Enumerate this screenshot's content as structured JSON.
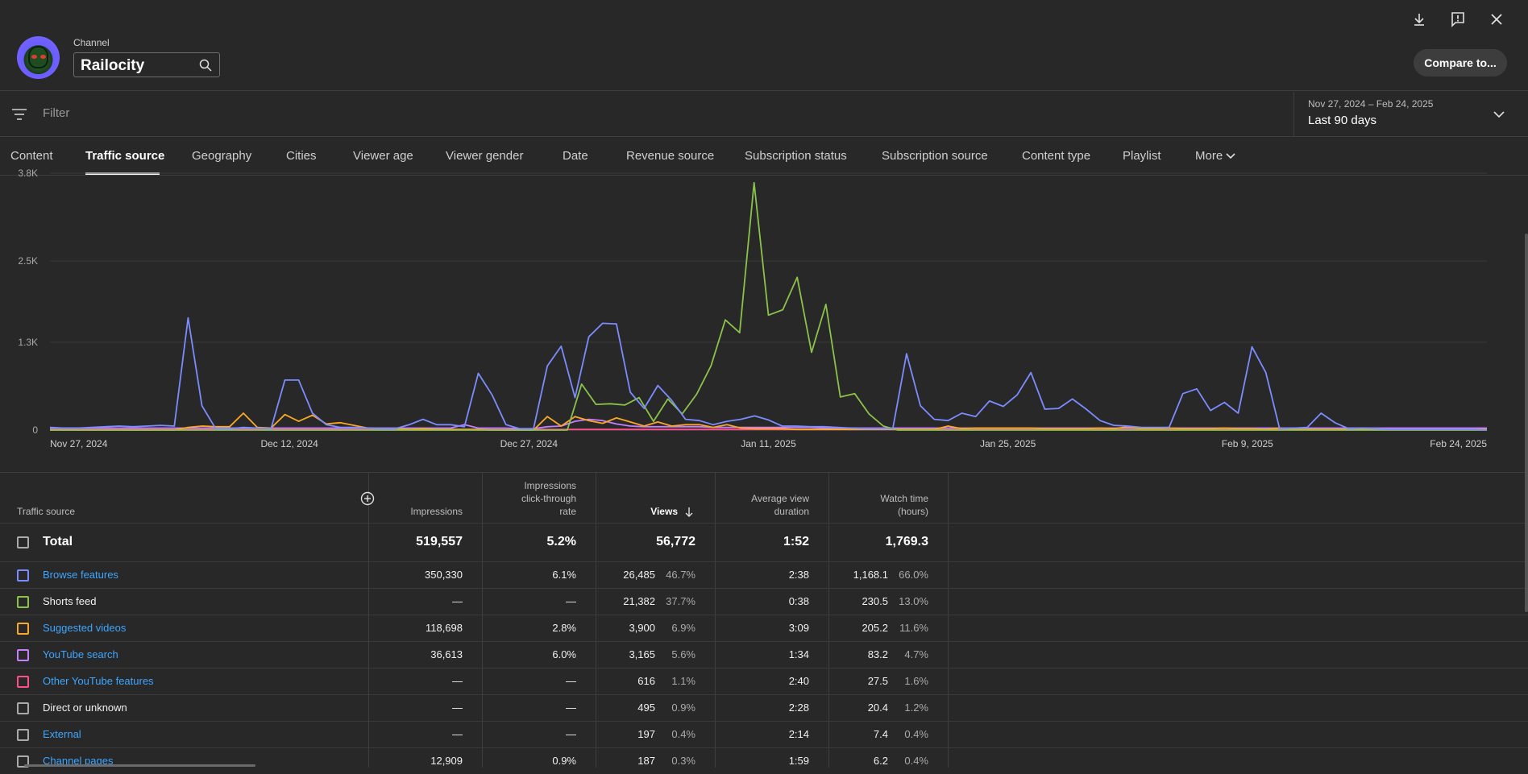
{
  "header": {
    "channel_label": "Channel",
    "channel_name": "Railocity",
    "compare_label": "Compare to..."
  },
  "filter": {
    "placeholder": "Filter",
    "date_range": "Nov 27, 2024 – Feb 24, 2025",
    "period_label": "Last 90 days"
  },
  "tabs": [
    {
      "label": "Content"
    },
    {
      "label": "Traffic source"
    },
    {
      "label": "Geography"
    },
    {
      "label": "Cities"
    },
    {
      "label": "Viewer age"
    },
    {
      "label": "Viewer gender"
    },
    {
      "label": "Date"
    },
    {
      "label": "Revenue source"
    },
    {
      "label": "Subscription status"
    },
    {
      "label": "Subscription source"
    },
    {
      "label": "Content type"
    },
    {
      "label": "Playlist"
    },
    {
      "label": "More"
    }
  ],
  "chart_data": {
    "type": "line",
    "yticks": [
      "3.8K",
      "2.5K",
      "1.3K",
      "0"
    ],
    "ylim": [
      0,
      3800
    ],
    "xticks": [
      "Nov 27, 2024",
      "Dec 12, 2024",
      "Dec 27, 2024",
      "Jan 11, 2025",
      "Jan 25, 2025",
      "Feb 9, 2025",
      "Feb 24, 2025"
    ],
    "grid": true,
    "series": [
      {
        "name": "Browse features",
        "color": "#7b8cff",
        "values": [
          40,
          30,
          30,
          40,
          50,
          60,
          50,
          60,
          70,
          60,
          1660,
          360,
          20,
          20,
          40,
          30,
          20,
          740,
          740,
          250,
          80,
          40,
          40,
          30,
          20,
          20,
          80,
          160,
          80,
          80,
          50,
          840,
          520,
          80,
          20,
          20,
          950,
          1240,
          480,
          1380,
          1580,
          1570,
          560,
          320,
          660,
          440,
          160,
          140,
          80,
          130,
          160,
          210,
          150,
          60,
          60,
          50,
          50,
          40,
          30,
          20,
          20,
          20,
          1130,
          360,
          160,
          140,
          250,
          200,
          430,
          350,
          520,
          850,
          310,
          320,
          460,
          310,
          140,
          70,
          60,
          40,
          40,
          40,
          540,
          610,
          290,
          410,
          250,
          1230,
          850,
          20,
          30,
          40,
          250,
          110,
          20,
          30,
          20,
          10,
          10,
          10,
          10,
          10,
          10,
          10,
          0
        ]
      },
      {
        "name": "Shorts feed",
        "color": "#8bc34a",
        "values": [
          0,
          0,
          0,
          0,
          0,
          0,
          0,
          0,
          0,
          0,
          0,
          0,
          0,
          0,
          0,
          0,
          0,
          0,
          0,
          0,
          0,
          0,
          0,
          0,
          0,
          0,
          0,
          0,
          0,
          0,
          0,
          0,
          0,
          0,
          0,
          0,
          0,
          680,
          380,
          390,
          370,
          480,
          130,
          460,
          240,
          530,
          950,
          1630,
          1440,
          3660,
          1700,
          1780,
          2260,
          1150,
          1860,
          490,
          540,
          240,
          60,
          0,
          0,
          0,
          0,
          0,
          0,
          0,
          0,
          0,
          0,
          0,
          0,
          0,
          0,
          0,
          0,
          0,
          0,
          0,
          0,
          0,
          0,
          0,
          0,
          0,
          0,
          0,
          0,
          0,
          0,
          0,
          0,
          0,
          0,
          0,
          0,
          0,
          0,
          0,
          0,
          0,
          0
        ]
      },
      {
        "name": "Suggested videos",
        "color": "#f9a825",
        "values": [
          0,
          0,
          0,
          0,
          0,
          0,
          0,
          0,
          0,
          0,
          40,
          60,
          50,
          50,
          250,
          40,
          30,
          230,
          130,
          220,
          90,
          110,
          70,
          30,
          20,
          20,
          10,
          20,
          10,
          10,
          10,
          10,
          0,
          0,
          0,
          0,
          200,
          60,
          200,
          140,
          100,
          180,
          120,
          60,
          120,
          60,
          80,
          80,
          40,
          80,
          30,
          20,
          20,
          20,
          10,
          10,
          10,
          10,
          10,
          10,
          10,
          10,
          10,
          10,
          10,
          60,
          20,
          30,
          30,
          30,
          30,
          30,
          20,
          20,
          20,
          20,
          30,
          20,
          50,
          20,
          20,
          30,
          20,
          20,
          20,
          30,
          20,
          20,
          10,
          30,
          10,
          10,
          10,
          10,
          10,
          10,
          10,
          10,
          10,
          10,
          10,
          10,
          10,
          10,
          10
        ]
      },
      {
        "name": "YouTube search",
        "color": "#c77dff",
        "values": [
          30,
          30,
          30,
          30,
          30,
          30,
          30,
          30,
          30,
          30,
          30,
          30,
          30,
          30,
          30,
          30,
          30,
          30,
          30,
          30,
          30,
          30,
          30,
          30,
          30,
          30,
          30,
          30,
          30,
          30,
          80,
          30,
          30,
          30,
          20,
          20,
          50,
          60,
          130,
          160,
          140,
          90,
          60,
          50,
          50,
          50,
          50,
          50,
          40,
          40,
          40,
          40,
          40,
          40,
          40,
          40,
          30,
          30,
          30,
          30,
          30,
          30,
          30,
          30,
          30,
          30,
          30,
          30,
          30,
          30,
          30,
          30,
          30,
          30,
          30,
          30,
          30,
          30,
          30,
          30,
          30,
          30,
          30,
          30,
          30,
          30,
          30,
          30,
          30,
          30,
          30,
          30,
          30,
          30,
          30,
          30,
          30,
          30,
          30,
          30,
          30,
          30,
          30,
          30,
          30
        ]
      },
      {
        "name": "Other YouTube features",
        "color": "#ff4e8a",
        "values": [
          10,
          10,
          10,
          10,
          10,
          10,
          10,
          10,
          10,
          10,
          10,
          10,
          10,
          10,
          10,
          10,
          10,
          10,
          10,
          10,
          10,
          10,
          10,
          10,
          10,
          10,
          10,
          10,
          10,
          10,
          10,
          10,
          10,
          10,
          10,
          10,
          10,
          10,
          10,
          10,
          10,
          10,
          10,
          10,
          10,
          10,
          10,
          10,
          10,
          10,
          10,
          10,
          10,
          10,
          10,
          10,
          10,
          10,
          10,
          10,
          10,
          10,
          10,
          10,
          10,
          10,
          10,
          10,
          10,
          10,
          10,
          10,
          10,
          10,
          10,
          10,
          10,
          10,
          10,
          10,
          10,
          10,
          10,
          10,
          10,
          10,
          10,
          10,
          10,
          10,
          10,
          10,
          10,
          10,
          10,
          10,
          10,
          10,
          10,
          10,
          10,
          10,
          10,
          10,
          10
        ]
      }
    ]
  },
  "table": {
    "headers": {
      "source": "Traffic source",
      "impressions": "Impressions",
      "ctr_1": "Impressions",
      "ctr_2": "click-through",
      "ctr_3": "rate",
      "views": "Views",
      "avd_1": "Average view",
      "avd_2": "duration",
      "wt_1": "Watch time",
      "wt_2": "(hours)"
    },
    "total": {
      "label": "Total",
      "impressions": "519,557",
      "ctr": "5.2%",
      "views": "56,772",
      "avd": "1:52",
      "wt": "1,769.3"
    },
    "rows": [
      {
        "label": "Browse features",
        "color": "#7b8cff",
        "link": true,
        "impressions": "350,330",
        "ctr": "6.1%",
        "views": "26,485",
        "views_pct": "46.7%",
        "avd": "2:38",
        "wt": "1,168.1",
        "wt_pct": "66.0%"
      },
      {
        "label": "Shorts feed",
        "color": "#8bc34a",
        "link": false,
        "impressions": "—",
        "ctr": "—",
        "views": "21,382",
        "views_pct": "37.7%",
        "avd": "0:38",
        "wt": "230.5",
        "wt_pct": "13.0%"
      },
      {
        "label": "Suggested videos",
        "color": "#f9a825",
        "link": true,
        "impressions": "118,698",
        "ctr": "2.8%",
        "views": "3,900",
        "views_pct": "6.9%",
        "avd": "3:09",
        "wt": "205.2",
        "wt_pct": "11.6%"
      },
      {
        "label": "YouTube search",
        "color": "#c77dff",
        "link": true,
        "impressions": "36,613",
        "ctr": "6.0%",
        "views": "3,165",
        "views_pct": "5.6%",
        "avd": "1:34",
        "wt": "83.2",
        "wt_pct": "4.7%"
      },
      {
        "label": "Other YouTube features",
        "color": "#ff4e8a",
        "link": true,
        "impressions": "—",
        "ctr": "—",
        "views": "616",
        "views_pct": "1.1%",
        "avd": "2:40",
        "wt": "27.5",
        "wt_pct": "1.6%"
      },
      {
        "label": "Direct or unknown",
        "color": "#aaaaaa",
        "link": false,
        "impressions": "—",
        "ctr": "—",
        "views": "495",
        "views_pct": "0.9%",
        "avd": "2:28",
        "wt": "20.4",
        "wt_pct": "1.2%"
      },
      {
        "label": "External",
        "color": "#aaaaaa",
        "link": true,
        "impressions": "—",
        "ctr": "—",
        "views": "197",
        "views_pct": "0.4%",
        "avd": "2:14",
        "wt": "7.4",
        "wt_pct": "0.4%"
      },
      {
        "label": "Channel pages",
        "color": "#aaaaaa",
        "link": true,
        "impressions": "12,909",
        "ctr": "0.9%",
        "views": "187",
        "views_pct": "0.3%",
        "avd": "1:59",
        "wt": "6.2",
        "wt_pct": "0.4%"
      }
    ]
  },
  "icons": {
    "download": "download-icon",
    "feedback": "feedback-icon",
    "close": "close-icon",
    "search": "search-icon",
    "filter": "filter-icon",
    "chevron": "chevron-down-icon",
    "add_column": "add-column-icon",
    "sort": "sort-down-icon"
  }
}
